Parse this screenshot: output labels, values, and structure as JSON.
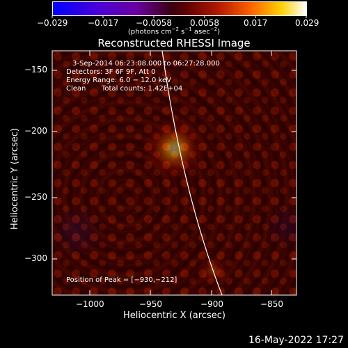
{
  "image": {
    "title": "Reconstructed RHESSI Image",
    "timestamp": "16-May-2022 17:27",
    "colorbar": {
      "ticks": [
        "−0.029",
        "−0.017",
        "−0.0058",
        "0.0058",
        "0.017",
        "0.029"
      ],
      "units_prefix": "(photons cm",
      "units_sup1": "−2",
      "units_mid1": " s",
      "units_sup2": "−1",
      "units_mid2": " asec",
      "units_sup3": "−2",
      "units_suffix": ")"
    },
    "x_axis": {
      "label": "Heliocentric X (arcsec)",
      "ticks": [
        "−1000",
        "−950",
        "−900",
        "−850"
      ]
    },
    "y_axis": {
      "label": "Heliocentric Y (arcsec)",
      "ticks": [
        "−150",
        "−200",
        "−250",
        "−300"
      ]
    },
    "annotations": {
      "time_range": "3-Sep-2014 06:23:08.000 to 06:27:28.000",
      "detectors": "Detectors: 3F 6F 9F, Att 0",
      "energy": "Energy Range: 6.0 − 12.0 keV",
      "clean": "Clean",
      "counts": "Total counts: 1.42E+04",
      "peak": "Position of Peak = [−930,−212]"
    },
    "colors": {
      "background": "#000000",
      "limb": "#ffffff"
    }
  }
}
